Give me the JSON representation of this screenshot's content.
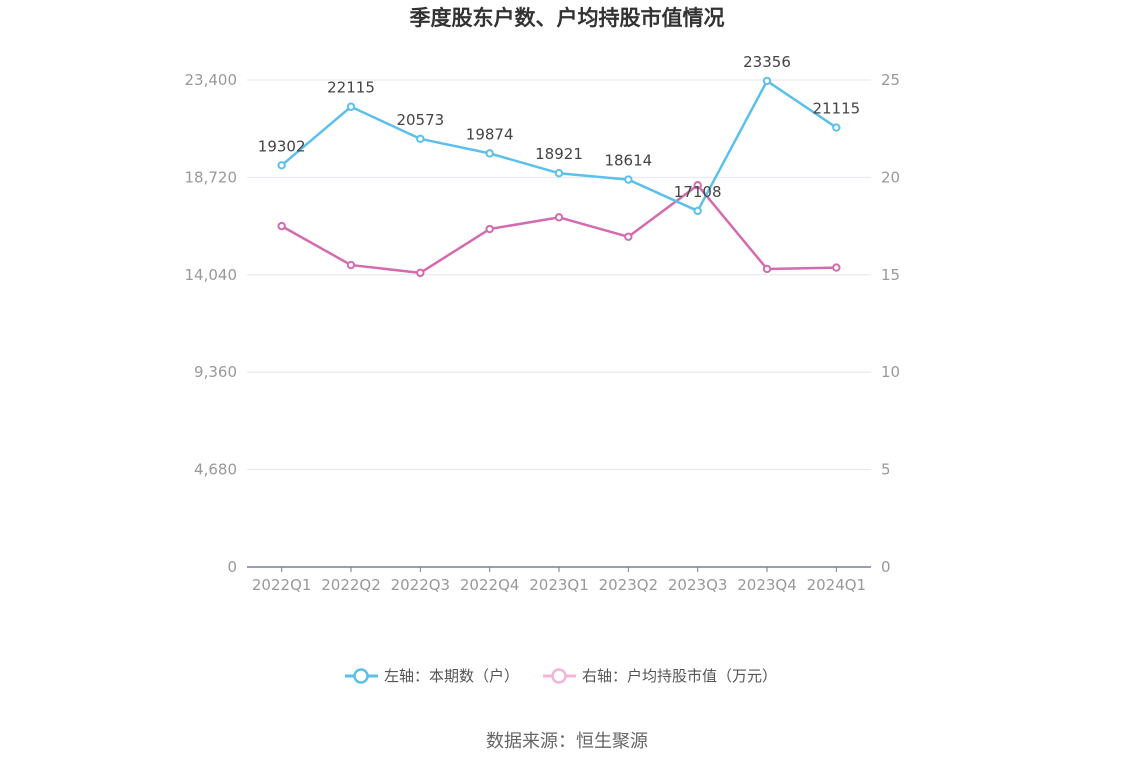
{
  "chart_data": {
    "type": "line",
    "title": "季度股东户数、户均持股市值情况",
    "categories": [
      "2022Q1",
      "2022Q2",
      "2022Q3",
      "2022Q4",
      "2023Q1",
      "2023Q2",
      "2023Q3",
      "2023Q4",
      "2024Q1"
    ],
    "series": [
      {
        "name": "左轴：本期数（户）",
        "axis": "left",
        "color": "#5bc0eb",
        "values": [
          19302,
          22115,
          20573,
          19874,
          18921,
          18614,
          17108,
          23356,
          21115
        ],
        "data_labels": [
          "19302",
          "22115",
          "20573",
          "19874",
          "18921",
          "18614",
          "17108",
          "23356",
          "21115"
        ]
      },
      {
        "name": "右轴：户均持股市值（万元）",
        "axis": "right",
        "color": "#d46bb0",
        "values": [
          17.5,
          15.5,
          15.1,
          17.35,
          17.95,
          16.95,
          19.6,
          15.3,
          15.37
        ]
      }
    ],
    "left_axis": {
      "range": [
        0,
        23400
      ],
      "ticks": [
        "0",
        "4,680",
        "9,360",
        "14,040",
        "18,720",
        "23,400"
      ]
    },
    "right_axis": {
      "range": [
        0,
        25
      ],
      "ticks": [
        "0",
        "5",
        "10",
        "15",
        "20",
        "25"
      ]
    },
    "grid": true,
    "legend_position": "bottom",
    "source": "数据来源：恒生聚源"
  }
}
